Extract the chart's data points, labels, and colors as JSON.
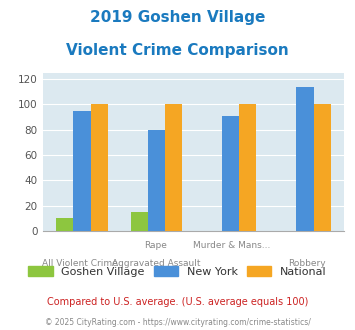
{
  "title_line1": "2019 Goshen Village",
  "title_line2": "Violent Crime Comparison",
  "title_color": "#1a7abf",
  "cat_labels_top": [
    "",
    "Rape",
    "Murder & Mans...",
    ""
  ],
  "cat_labels_bottom": [
    "All Violent Crime",
    "Aggravated Assault",
    "",
    "Robbery"
  ],
  "goshen_values": [
    10,
    15,
    0,
    0
  ],
  "ny_values": [
    95,
    80,
    91,
    114
  ],
  "national_values": [
    100,
    100,
    100,
    100
  ],
  "goshen_color": "#8dc63f",
  "ny_color": "#4a90d9",
  "national_color": "#f5a623",
  "ylim": [
    0,
    125
  ],
  "yticks": [
    0,
    20,
    40,
    60,
    80,
    100,
    120
  ],
  "plot_bg_color": "#dce9f0",
  "legend_labels": [
    "Goshen Village",
    "New York",
    "National"
  ],
  "footnote1": "Compared to U.S. average. (U.S. average equals 100)",
  "footnote2": "© 2025 CityRating.com - https://www.cityrating.com/crime-statistics/",
  "footnote1_color": "#cc2222",
  "footnote2_color": "#888888"
}
